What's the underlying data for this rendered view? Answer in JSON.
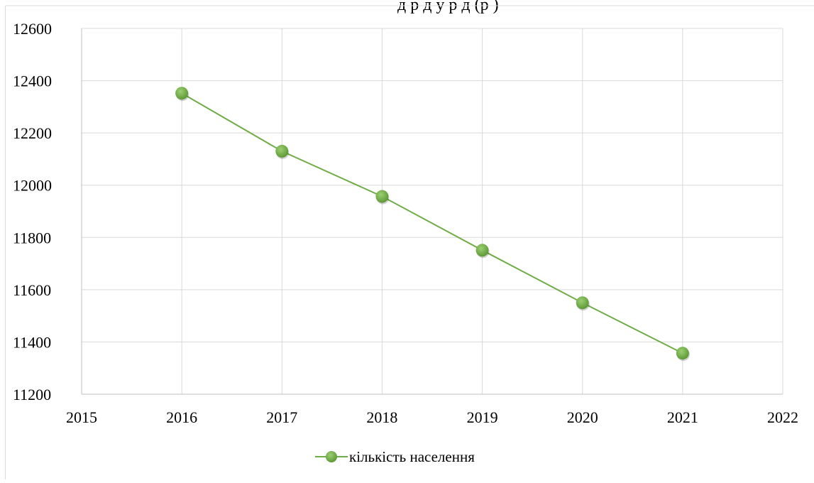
{
  "title_fragment": "д              р        д  у      р    д (р      )",
  "chart_data": {
    "type": "scatter",
    "x": [
      2016,
      2017,
      2018,
      2019,
      2020,
      2021
    ],
    "series": [
      {
        "name": "кількість населення",
        "values": [
          12352,
          12130,
          11957,
          11751,
          11550,
          11357
        ]
      }
    ],
    "xlim": [
      2015,
      2022
    ],
    "ylim": [
      11200,
      12600
    ],
    "xticks": [
      2015,
      2016,
      2017,
      2018,
      2019,
      2020,
      2021,
      2022
    ],
    "yticks": [
      11200,
      11400,
      11600,
      11800,
      12000,
      12200,
      12400,
      12600
    ],
    "grid": true,
    "legend": "bottom",
    "line_color": "#70ad47",
    "marker_color": "#70ad47"
  }
}
